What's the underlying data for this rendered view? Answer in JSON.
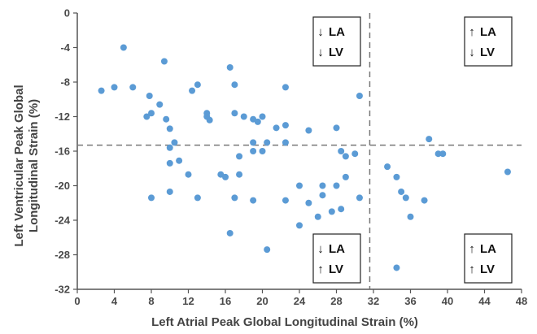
{
  "chart_data": {
    "type": "scatter",
    "xlabel": "Left Atrial Peak Global Longitudinal Strain (%)",
    "ylabel_lines": [
      "Left Ventricular Peak Global",
      "Longitudinal Strain (%)"
    ],
    "xlim": [
      0,
      48
    ],
    "ylim": [
      -32,
      0
    ],
    "xticks": [
      0,
      4,
      8,
      12,
      16,
      20,
      24,
      28,
      32,
      36,
      40,
      44,
      48
    ],
    "yticks": [
      0,
      -4,
      -8,
      -12,
      -16,
      -20,
      -24,
      -28,
      -32
    ],
    "grid": false,
    "marker_color": "#5b9bd5",
    "threshold_lines": {
      "x": 31.6,
      "y": -15.3
    },
    "quadrants": [
      {
        "id": "top-left",
        "lines": [
          {
            "arrow": "↓",
            "label": "LA"
          },
          {
            "arrow": "↓",
            "label": "LV"
          }
        ]
      },
      {
        "id": "top-right",
        "lines": [
          {
            "arrow": "↑",
            "label": "LA"
          },
          {
            "arrow": "↓",
            "label": "LV"
          }
        ]
      },
      {
        "id": "bottom-left",
        "lines": [
          {
            "arrow": "↓",
            "label": "LA"
          },
          {
            "arrow": "↑",
            "label": "LV"
          }
        ]
      },
      {
        "id": "bottom-right",
        "lines": [
          {
            "arrow": "↑",
            "label": "LA"
          },
          {
            "arrow": "↑",
            "label": "LV"
          }
        ]
      }
    ],
    "points": [
      [
        2.6,
        -9.0
      ],
      [
        4.0,
        -8.6
      ],
      [
        5.0,
        -4.0
      ],
      [
        6.0,
        -8.6
      ],
      [
        7.8,
        -9.6
      ],
      [
        7.5,
        -12.0
      ],
      [
        8.0,
        -11.6
      ],
      [
        8.9,
        -10.6
      ],
      [
        9.4,
        -5.6
      ],
      [
        9.6,
        -12.3
      ],
      [
        10.0,
        -13.4
      ],
      [
        10.0,
        -15.6
      ],
      [
        10.5,
        -15.0
      ],
      [
        10.0,
        -17.4
      ],
      [
        11.0,
        -17.1
      ],
      [
        8.0,
        -21.4
      ],
      [
        10.0,
        -20.7
      ],
      [
        12.0,
        -18.7
      ],
      [
        12.4,
        -9.0
      ],
      [
        13.0,
        -8.3
      ],
      [
        14.0,
        -11.6
      ],
      [
        14.3,
        -12.4
      ],
      [
        14.0,
        -12.0
      ],
      [
        13.0,
        -21.4
      ],
      [
        15.5,
        -18.7
      ],
      [
        16.0,
        -19.0
      ],
      [
        16.5,
        -6.3
      ],
      [
        17.0,
        -8.3
      ],
      [
        17.0,
        -11.6
      ],
      [
        18.0,
        -12.0
      ],
      [
        17.5,
        -16.6
      ],
      [
        17.5,
        -18.7
      ],
      [
        17.0,
        -21.4
      ],
      [
        16.5,
        -25.5
      ],
      [
        19.0,
        -12.3
      ],
      [
        19.5,
        -12.6
      ],
      [
        20.0,
        -12.0
      ],
      [
        19.0,
        -15.0
      ],
      [
        19.0,
        -16.0
      ],
      [
        20.0,
        -16.0
      ],
      [
        20.5,
        -15.0
      ],
      [
        21.5,
        -13.3
      ],
      [
        22.5,
        -8.6
      ],
      [
        22.5,
        -13.0
      ],
      [
        22.5,
        -15.0
      ],
      [
        19.0,
        -21.7
      ],
      [
        20.5,
        -27.4
      ],
      [
        22.5,
        -21.7
      ],
      [
        24.0,
        -20.0
      ],
      [
        25.0,
        -13.6
      ],
      [
        25.0,
        -22.0
      ],
      [
        24.0,
        -24.6
      ],
      [
        26.5,
        -20.0
      ],
      [
        26.5,
        -21.1
      ],
      [
        26.0,
        -23.6
      ],
      [
        27.5,
        -23.0
      ],
      [
        28.0,
        -13.3
      ],
      [
        28.5,
        -16.0
      ],
      [
        29.0,
        -16.6
      ],
      [
        28.0,
        -20.0
      ],
      [
        28.5,
        -22.7
      ],
      [
        29.0,
        -19.0
      ],
      [
        30.0,
        -16.3
      ],
      [
        30.5,
        -9.6
      ],
      [
        30.5,
        -21.4
      ],
      [
        33.5,
        -17.8
      ],
      [
        34.5,
        -19.0
      ],
      [
        35.0,
        -20.7
      ],
      [
        35.5,
        -21.4
      ],
      [
        36.0,
        -23.6
      ],
      [
        34.5,
        -29.5
      ],
      [
        37.5,
        -21.7
      ],
      [
        38.0,
        -14.6
      ],
      [
        39.0,
        -16.3
      ],
      [
        39.5,
        -16.3
      ],
      [
        46.5,
        -18.4
      ]
    ]
  }
}
